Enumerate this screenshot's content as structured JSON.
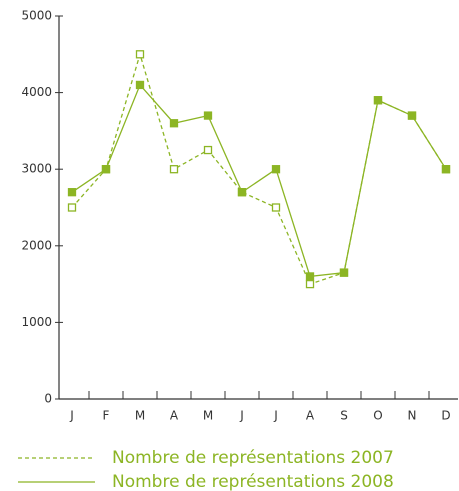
{
  "chart_data": {
    "type": "line",
    "categories": [
      "J",
      "F",
      "M",
      "A",
      "M",
      "J",
      "J",
      "A",
      "S",
      "O",
      "N",
      "D"
    ],
    "series": [
      {
        "name": "Nombre de représentations 2007",
        "color": "#8cb524",
        "dash": true,
        "marker": "hollow",
        "values": [
          2500,
          3000,
          4500,
          3000,
          3250,
          2700,
          2500,
          1500,
          1650,
          3900,
          3700,
          3000
        ]
      },
      {
        "name": "Nombre de représentations 2008",
        "color": "#8cb524",
        "dash": false,
        "marker": "filled",
        "values": [
          2700,
          3000,
          4100,
          3600,
          3700,
          2700,
          3000,
          1600,
          1650,
          3900,
          3700,
          3000
        ]
      }
    ],
    "ylim": [
      0,
      5000
    ],
    "yticks": [
      0,
      1000,
      2000,
      3000,
      4000,
      5000
    ]
  }
}
